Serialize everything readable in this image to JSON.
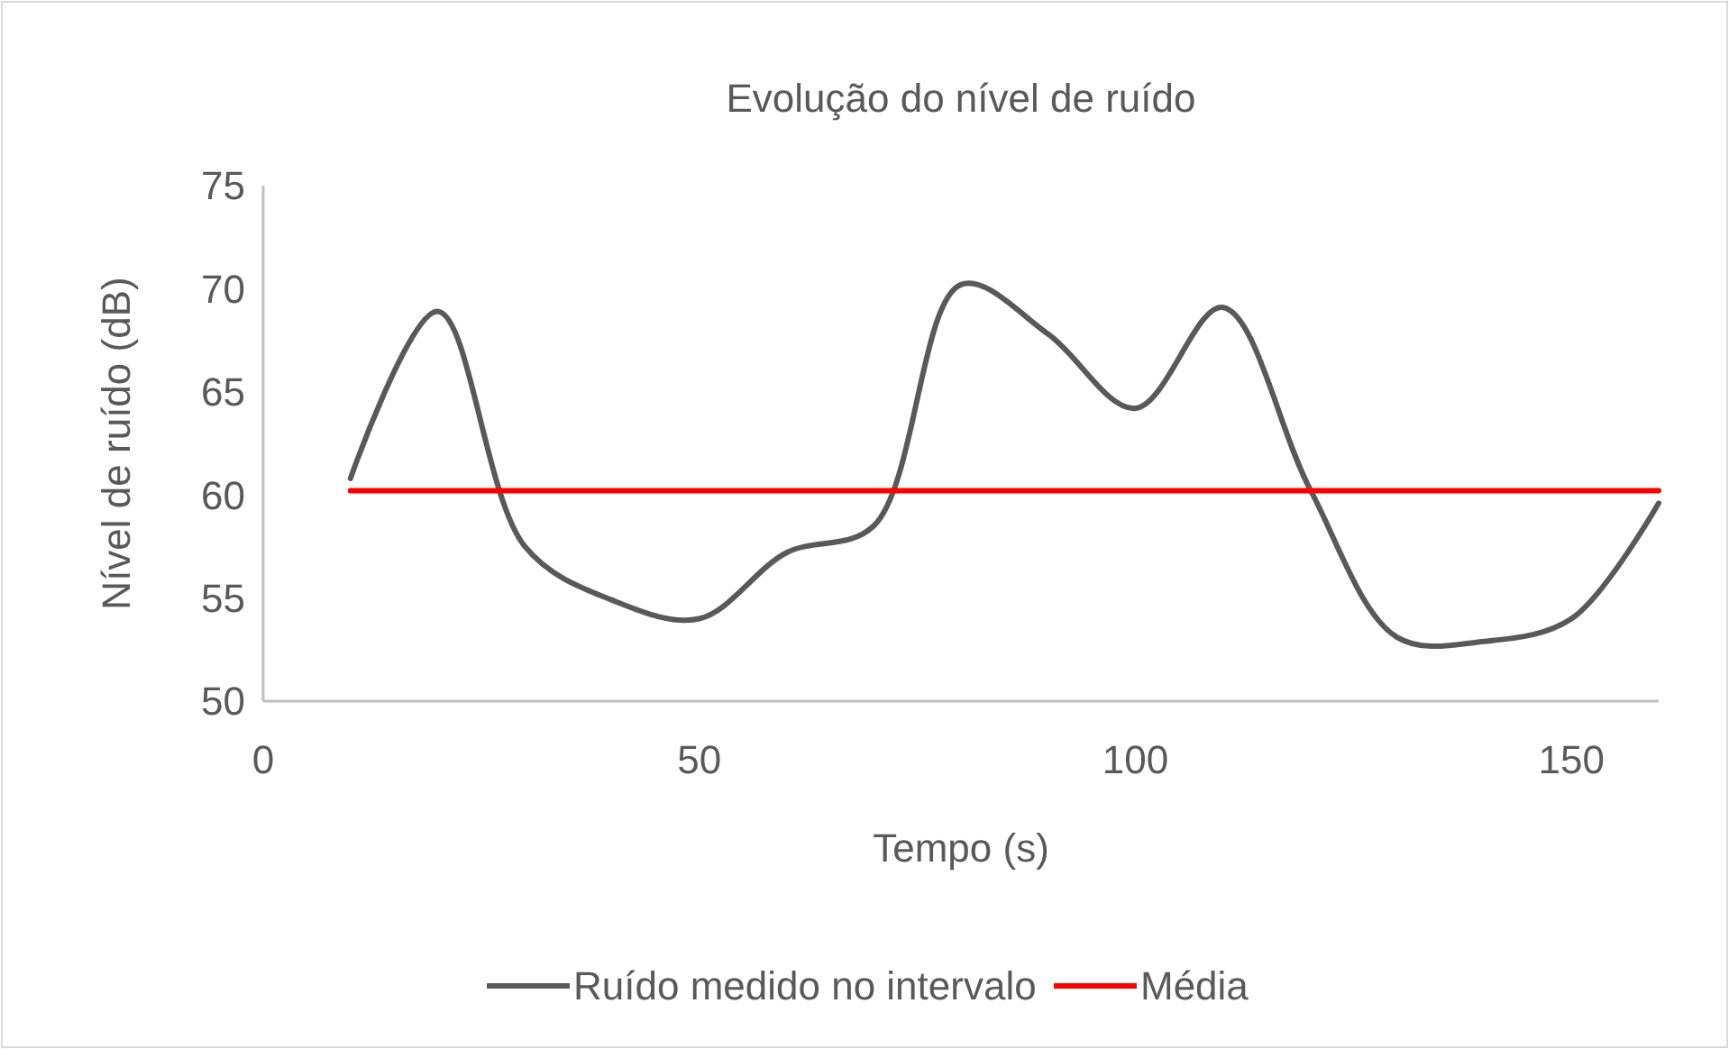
{
  "chart_data": {
    "type": "line",
    "title": "Evolução do nível de ruído",
    "xlabel": "Tempo (s)",
    "ylabel": "Nível de ruído (dB)",
    "x": [
      10,
      20,
      30,
      40,
      50,
      60,
      70,
      80,
      90,
      100,
      110,
      120,
      130,
      140,
      150,
      160
    ],
    "series": [
      {
        "name": "Ruído medido no intervalo",
        "color": "#595959",
        "values": [
          60.8,
          68.9,
          57.5,
          54.9,
          54.0,
          57.2,
          58.5,
          70.2,
          67.8,
          64.2,
          69.1,
          60.3,
          53.1,
          52.9,
          54.0,
          59.6
        ]
      },
      {
        "name": "Média",
        "color": "#ff0000",
        "x": [
          10,
          160
        ],
        "values": [
          60.2,
          60.2
        ]
      }
    ],
    "xlim": [
      0,
      160
    ],
    "xticks": [
      0,
      50,
      100,
      150
    ],
    "ylim": [
      50,
      75
    ],
    "yticks": [
      50,
      55,
      60,
      65,
      70,
      75
    ],
    "grid": false,
    "legend": "bottom",
    "marker": "none",
    "line_style": "solid"
  }
}
